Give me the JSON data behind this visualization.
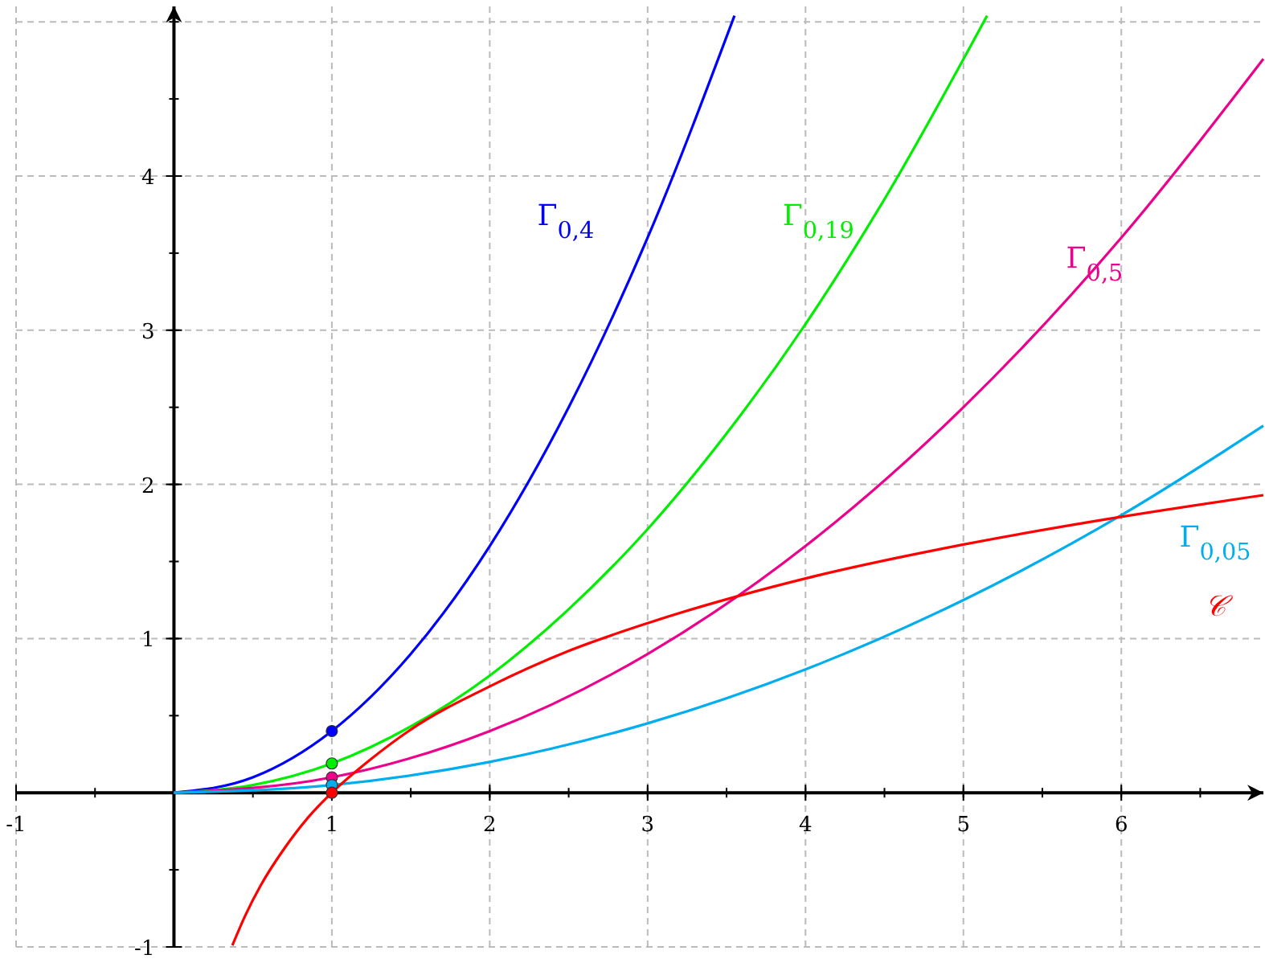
{
  "chart_data": {
    "type": "line",
    "xlim": [
      -1,
      6.9
    ],
    "ylim": [
      -1,
      5.1
    ],
    "xticks": [
      -1,
      1,
      2,
      3,
      4,
      5,
      6
    ],
    "yticks": [
      -1,
      1,
      2,
      3,
      4
    ],
    "grid": true,
    "marker": "none",
    "line_style": "solid",
    "series": [
      {
        "name": "Γ$_{0,4}$",
        "color": "#0000ff",
        "x": [
          0,
          0.5,
          1,
          1.5,
          2,
          2.5,
          3,
          3.55
        ],
        "values": [
          0,
          0.1,
          0.4,
          0.9,
          1.6,
          2.5,
          3.6,
          5.04
        ]
      },
      {
        "name": "Γ$_{0,19}$",
        "color": "#00ee00",
        "x": [
          0,
          0.5,
          1,
          1.5,
          2,
          2.5,
          3,
          3.5,
          4,
          4.5,
          5.15
        ],
        "values": [
          0,
          0.05,
          0.19,
          0.43,
          0.76,
          1.19,
          1.71,
          2.33,
          3.04,
          3.85,
          5.04
        ]
      },
      {
        "name": "Γ$_{0,5}$",
        "color": "#ec008c",
        "x": [
          0,
          1,
          2,
          3,
          4,
          5,
          6,
          6.9
        ],
        "values": [
          0,
          0.1,
          0.4,
          0.9,
          1.6,
          2.5,
          3.6,
          4.76
        ]
      },
      {
        "name": "Γ$_{0,05}$",
        "color": "#00aeef",
        "x": [
          0,
          1,
          2,
          3,
          4,
          5,
          6,
          6.9
        ],
        "values": [
          0,
          0.05,
          0.2,
          0.45,
          0.8,
          1.25,
          1.8,
          2.38
        ]
      },
      {
        "name": "𝒞",
        "color": "#ff0000",
        "x": [
          0.37,
          0.45,
          0.55,
          0.7,
          0.85,
          1,
          1.25,
          1.5,
          2,
          2.5,
          3,
          4,
          5,
          6,
          6.9
        ],
        "values": [
          -0.99,
          -0.8,
          -0.6,
          -0.36,
          -0.16,
          0,
          0.22,
          0.41,
          0.69,
          0.92,
          1.1,
          1.39,
          1.61,
          1.79,
          1.93
        ]
      },
      {
        "type": "scatter",
        "marker": "circle",
        "x": [
          1,
          1,
          1,
          1,
          1
        ],
        "values": [
          0.4,
          0.19,
          0.1,
          0.05,
          0
        ],
        "colors": [
          "#0000ff",
          "#00ee00",
          "#ec008c",
          "#00aeef",
          "#ff0000"
        ]
      }
    ]
  }
}
